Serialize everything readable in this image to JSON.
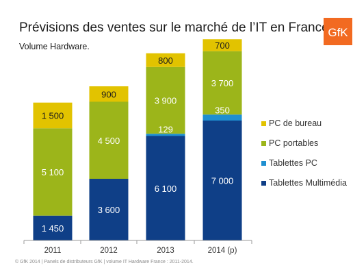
{
  "header": {
    "title": "Prévisions des ventes sur le marché de l’IT en France",
    "subtitle": "Volume Hardware.",
    "logo_text": "GfK",
    "logo_color": "#f26a21"
  },
  "footer": {
    "source": "© GfK 2014 | Panels de distributeurs GfK | volume IT Hardware France : 2011-2014."
  },
  "chart_data": {
    "type": "bar",
    "stacked": true,
    "categories": [
      "2011",
      "2012",
      "2013",
      "2014 (p)"
    ],
    "series": [
      {
        "name": "Tablettes Multimédia",
        "color": "#0f3f87",
        "values": [
          1450,
          3600,
          6100,
          7000
        ],
        "labels": [
          "1 450",
          "3 600",
          "6 100",
          "7 000"
        ]
      },
      {
        "name": "Tablettes PC",
        "color": "#1f8fd0",
        "values": [
          0,
          0,
          129,
          350
        ],
        "labels": [
          "",
          "",
          "129",
          "350"
        ]
      },
      {
        "name": "PC portables",
        "color": "#9cb51a",
        "values": [
          5100,
          4500,
          3900,
          3700
        ],
        "labels": [
          "5 100",
          "4 500",
          "3 900",
          "3 700"
        ]
      },
      {
        "name": "PC de bureau",
        "color": "#e2c300",
        "values": [
          1500,
          900,
          800,
          700
        ],
        "labels": [
          "1 500",
          "900",
          "800",
          "700"
        ]
      }
    ],
    "legend_position": "right",
    "legend_order": [
      "PC de bureau",
      "PC portables",
      "Tablettes PC",
      "Tablettes Multimédia"
    ],
    "grid": false
  }
}
